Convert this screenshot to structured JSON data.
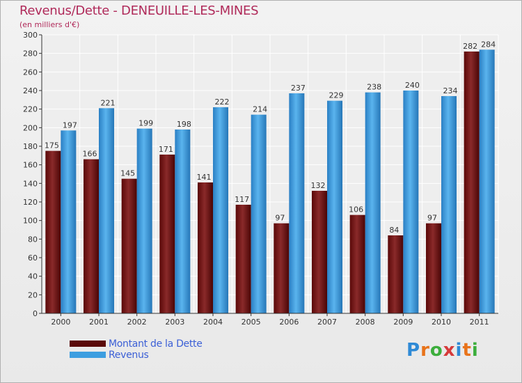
{
  "title": "Revenus/Dette - DENEUILLE-LES-MINES",
  "subtitle": "(en milliers d'€)",
  "colors": {
    "dette": "#7a1a1a",
    "revenus": "#3d9ee0",
    "title": "#b02a5a",
    "legend_text": "#3b5fd6"
  },
  "legend": [
    {
      "label": "Montant de la Dette",
      "color": "#5a0a0a"
    },
    {
      "label": "Revenus",
      "color": "#3d9ee0"
    }
  ],
  "logo": {
    "text": "Proxiti",
    "letters": [
      "P",
      "r",
      "o",
      "x",
      "i",
      "t",
      "i"
    ],
    "colors": [
      "#2f8ad6",
      "#e8731a",
      "#3cae3c",
      "#d63a3a",
      "#2f8ad6",
      "#e8731a",
      "#3cae3c"
    ]
  },
  "chart_data": {
    "type": "bar",
    "title": "Revenus/Dette - DENEUILLE-LES-MINES",
    "subtitle": "(en milliers d'€)",
    "categories": [
      "2000",
      "2001",
      "2002",
      "2003",
      "2004",
      "2005",
      "2006",
      "2007",
      "2008",
      "2009",
      "2010",
      "2011"
    ],
    "series": [
      {
        "name": "Montant de la Dette",
        "values": [
          175,
          166,
          145,
          171,
          141,
          117,
          97,
          132,
          106,
          84,
          97,
          282
        ]
      },
      {
        "name": "Revenus",
        "values": [
          197,
          221,
          199,
          198,
          222,
          214,
          237,
          229,
          238,
          240,
          234,
          284
        ]
      }
    ],
    "ylim": [
      0,
      300
    ],
    "yticks": [
      0,
      20,
      40,
      60,
      80,
      100,
      120,
      140,
      160,
      180,
      200,
      220,
      240,
      260,
      280,
      300
    ],
    "grid": true,
    "legend_position": "bottom-left"
  }
}
